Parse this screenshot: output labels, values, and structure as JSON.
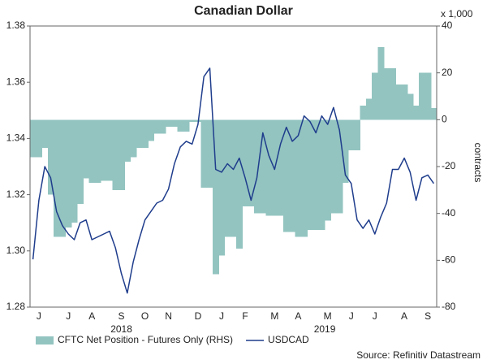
{
  "chart_data": {
    "type": "bar-line-dual",
    "title": "Canadian Dollar",
    "y2_unit_label": "x 1,000",
    "y2label": "contracts",
    "source": "Source: Refinitiv Datastream",
    "legend": "bottom",
    "categories": [
      null,
      "J",
      null,
      null,
      null,
      null,
      "J",
      null,
      null,
      null,
      "A",
      null,
      null,
      null,
      null,
      "S",
      null,
      null,
      null,
      "O",
      null,
      null,
      null,
      "N",
      null,
      null,
      null,
      null,
      "D",
      null,
      null,
      null,
      "J",
      null,
      null,
      null,
      "F",
      null,
      null,
      null,
      null,
      "M",
      null,
      null,
      null,
      "A",
      null,
      null,
      null,
      null,
      "M",
      null,
      null,
      null,
      "J",
      null,
      null,
      null,
      "J",
      null,
      null,
      null,
      null,
      "A",
      null,
      null,
      null,
      "S",
      null
    ],
    "category_years": [
      "2018",
      "2018",
      "2018",
      "2018",
      "2018",
      "2018",
      "2018",
      "2018",
      "2018",
      "2018",
      "2018",
      "2018",
      "2018",
      "2018",
      "2018",
      "2018",
      "2018",
      "2018",
      "2018",
      "2018",
      "2018",
      "2018",
      "2018",
      "2018",
      "2018",
      "2018",
      "2018",
      "2018",
      "2018",
      "2018",
      "2018",
      "2019",
      "2019",
      "2019",
      "2019",
      "2019",
      "2019",
      "2019",
      "2019",
      "2019",
      "2019",
      "2019",
      "2019",
      "2019",
      "2019",
      "2019",
      "2019",
      "2019",
      "2019",
      "2019",
      "2019",
      "2019",
      "2019",
      "2019",
      "2019",
      "2019",
      "2019",
      "2019",
      "2019",
      "2019",
      "2019",
      "2019",
      "2019",
      "2019",
      "2019",
      "2019",
      "2019",
      "2019",
      "2019"
    ],
    "series": [
      {
        "name": "CFTC Net Position - Futures Only (RHS)",
        "type": "step-area",
        "axis": "y2",
        "color": "#93c4c0",
        "values": [
          -16,
          -16,
          -12,
          -32,
          -50,
          -50,
          -46,
          -44,
          -36,
          -25,
          -27,
          -27,
          -26,
          -26,
          -30,
          -30,
          -18,
          -16,
          -12,
          -12,
          -9,
          -6,
          -6,
          -3,
          -3,
          -5,
          -5,
          -1,
          -1,
          -29,
          -29,
          -66,
          -58,
          -50,
          -50,
          -55,
          -37,
          -37,
          -40,
          -40,
          -41,
          -41,
          -41,
          -48,
          -48,
          -50,
          -50,
          -47,
          -47,
          -47,
          -43,
          -40,
          -40,
          -27,
          -13,
          -13,
          6,
          9,
          20,
          31,
          22,
          22,
          15,
          15,
          11,
          6,
          20,
          20,
          5
        ]
      },
      {
        "name": "USDCAD",
        "type": "line",
        "color": "#1f3d8c",
        "values": [
          1.297,
          1.318,
          1.33,
          1.326,
          1.314,
          1.309,
          1.306,
          1.304,
          1.31,
          1.311,
          1.304,
          1.305,
          1.306,
          1.307,
          1.301,
          1.292,
          1.285,
          1.296,
          1.304,
          1.311,
          1.314,
          1.317,
          1.318,
          1.322,
          1.331,
          1.337,
          1.339,
          1.338,
          1.345,
          1.362,
          1.365,
          1.329,
          1.328,
          1.331,
          1.329,
          1.333,
          1.326,
          1.318,
          1.326,
          1.342,
          1.334,
          1.329,
          1.338,
          1.344,
          1.339,
          1.341,
          1.348,
          1.346,
          1.342,
          1.348,
          1.345,
          1.351,
          1.343,
          1.327,
          1.324,
          1.311,
          1.308,
          1.311,
          1.306,
          1.312,
          1.317,
          1.329,
          1.329,
          1.333,
          1.328,
          1.318,
          1.326,
          1.327,
          1.324
        ]
      }
    ],
    "ylim": [
      1.28,
      1.38
    ],
    "yticks": [
      1.28,
      {
        "value": 1.3,
        "label": "1.30"
      },
      1.32,
      1.34,
      1.36,
      1.38
    ],
    "y2lim": [
      -80,
      40
    ],
    "y2ticks": [
      -80,
      -60,
      -40,
      -20,
      0,
      20,
      40
    ]
  }
}
